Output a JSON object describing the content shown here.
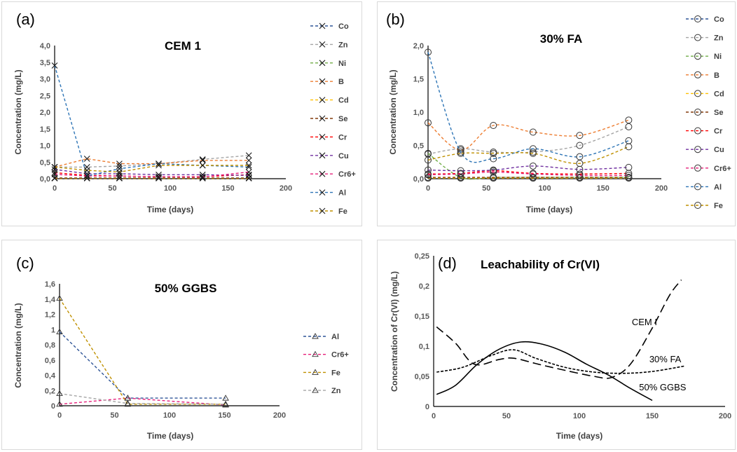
{
  "charts": [
    {
      "id": "pa",
      "panel_label": "(a)",
      "marker": "x",
      "chart_data": {
        "type": "line",
        "title": "CEM 1",
        "xlabel": "Time (days)",
        "ylabel": "Concentration (mg/L)",
        "xlim": [
          0,
          200
        ],
        "ylim": [
          0,
          4
        ],
        "xticks": [
          0,
          50,
          100,
          150,
          200
        ],
        "xtick_labels": [
          "0",
          "50",
          "100",
          "150",
          "200"
        ],
        "yticks": [
          0,
          0.5,
          1,
          1.5,
          2,
          2.5,
          3,
          3.5,
          4
        ],
        "ytick_labels": [
          "0,0",
          "0,5",
          "1,0",
          "1,5",
          "2,0",
          "2,5",
          "3,0",
          "3,5",
          "4,0"
        ],
        "legend_position": "right",
        "x": [
          0,
          28,
          56,
          90,
          128,
          168
        ],
        "series": [
          {
            "name": "Co",
            "color": "#2f5597",
            "values": [
              0.02,
              0.02,
              0.02,
              0.02,
              0.02,
              0.02
            ]
          },
          {
            "name": "Zn",
            "color": "#a5a5a5",
            "values": [
              0.35,
              0.35,
              0.38,
              0.45,
              0.58,
              0.7
            ]
          },
          {
            "name": "Ni",
            "color": "#70ad47",
            "values": [
              0.02,
              0.02,
              0.02,
              0.02,
              0.02,
              0.02
            ]
          },
          {
            "name": "B",
            "color": "#ed7d31",
            "values": [
              0.35,
              0.6,
              0.45,
              0.45,
              0.55,
              0.55
            ]
          },
          {
            "name": "Cd",
            "color": "#ffc000",
            "values": [
              0.01,
              0.01,
              0.01,
              0.01,
              0.01,
              0.01
            ]
          },
          {
            "name": "Se",
            "color": "#843c0c",
            "values": [
              0.02,
              0.02,
              0.02,
              0.02,
              0.02,
              0.02
            ]
          },
          {
            "name": "Cr",
            "color": "#ff0000",
            "values": [
              0.18,
              0.1,
              0.08,
              0.06,
              0.06,
              0.12
            ]
          },
          {
            "name": "Cu",
            "color": "#7030a0",
            "values": [
              0.28,
              0.15,
              0.15,
              0.12,
              0.12,
              0.1
            ]
          },
          {
            "name": "Cr6+",
            "color": "#e6207a",
            "values": [
              0.13,
              0.08,
              0.08,
              0.06,
              0.05,
              0.2
            ]
          },
          {
            "name": "Al",
            "color": "#2e75b6",
            "values": [
              3.4,
              0.08,
              0.3,
              0.45,
              0.4,
              0.35
            ]
          },
          {
            "name": "Fe",
            "color": "#bf9000",
            "values": [
              0.35,
              0.25,
              0.2,
              0.4,
              0.4,
              0.4
            ]
          }
        ]
      }
    },
    {
      "id": "pb",
      "panel_label": "(b)",
      "marker": "o",
      "chart_data": {
        "type": "line",
        "title": "30% FA",
        "xlabel": "Time (days)",
        "ylabel": "Concentration  (mg/L)",
        "xlim": [
          0,
          200
        ],
        "ylim": [
          0,
          2
        ],
        "xticks": [
          0,
          50,
          100,
          150,
          200
        ],
        "xtick_labels": [
          "0",
          "50",
          "100",
          "150",
          "200"
        ],
        "yticks": [
          0,
          0.5,
          1,
          1.5,
          2
        ],
        "ytick_labels": [
          "0,0",
          "0,5",
          "1,0",
          "1,5",
          "2,0"
        ],
        "legend_position": "right",
        "x": [
          0,
          28,
          56,
          90,
          130,
          172
        ],
        "series": [
          {
            "name": "Co",
            "color": "#2f5597",
            "values": [
              0.01,
              0.01,
              0.01,
              0.01,
              0.01,
              0.01
            ]
          },
          {
            "name": "Zn",
            "color": "#a5a5a5",
            "values": [
              0.37,
              0.45,
              0.4,
              0.4,
              0.5,
              0.78
            ]
          },
          {
            "name": "Ni",
            "color": "#70ad47",
            "values": [
              0.38,
              0.02,
              0.02,
              0.02,
              0.02,
              0.02
            ]
          },
          {
            "name": "B",
            "color": "#ed7d31",
            "values": [
              0.84,
              0.43,
              0.8,
              0.7,
              0.65,
              0.88
            ]
          },
          {
            "name": "Cd",
            "color": "#ffc000",
            "values": [
              0.01,
              0.01,
              0.01,
              0.01,
              0.01,
              0.01
            ]
          },
          {
            "name": "Se",
            "color": "#843c0c",
            "values": [
              0.02,
              0.02,
              0.02,
              0.02,
              0.02,
              0.02
            ]
          },
          {
            "name": "Cr",
            "color": "#ff0000",
            "values": [
              0.07,
              0.08,
              0.12,
              0.08,
              0.07,
              0.08
            ]
          },
          {
            "name": "Cu",
            "color": "#7030a0",
            "values": [
              0.13,
              0.12,
              0.13,
              0.19,
              0.14,
              0.17
            ]
          },
          {
            "name": "Cr6+",
            "color": "#e6207a",
            "values": [
              0.06,
              0.07,
              0.1,
              0.07,
              0.05,
              0.05
            ]
          },
          {
            "name": "Al",
            "color": "#2e75b6",
            "values": [
              1.9,
              0.4,
              0.3,
              0.45,
              0.33,
              0.57
            ]
          },
          {
            "name": "Fe",
            "color": "#bf9000",
            "values": [
              0.28,
              0.38,
              0.38,
              0.38,
              0.23,
              0.48
            ]
          }
        ]
      }
    },
    {
      "id": "pc",
      "panel_label": "(c)",
      "marker": "triangle",
      "chart_data": {
        "type": "line",
        "title": "50% GGBS",
        "xlabel": "Time (days)",
        "ylabel": "Concentration (mg/L)",
        "xlim": [
          0,
          200
        ],
        "ylim": [
          0,
          1.6
        ],
        "xticks": [
          0,
          50,
          100,
          150,
          200
        ],
        "xtick_labels": [
          "0",
          "50",
          "100",
          "150",
          "200"
        ],
        "yticks": [
          0,
          0.2,
          0.4,
          0.6,
          0.8,
          1,
          1.2,
          1.4,
          1.6
        ],
        "ytick_labels": [
          "0",
          "0,2",
          "0,4",
          "0,6",
          "0,8",
          "1",
          "1,2",
          "1,4",
          "1,6"
        ],
        "legend_position": "right",
        "x": [
          0,
          62,
          151
        ],
        "series": [
          {
            "name": "Al",
            "color": "#2f5597",
            "values": [
              0.97,
              0.1,
              0.1
            ]
          },
          {
            "name": "Cr6+",
            "color": "#e6207a",
            "values": [
              0.02,
              0.1,
              0.01
            ]
          },
          {
            "name": "Fe",
            "color": "#bf9000",
            "values": [
              1.41,
              0.02,
              0.02
            ]
          },
          {
            "name": "Zn",
            "color": "#a5a5a5",
            "values": [
              0.16,
              0.03,
              0.02
            ]
          }
        ]
      }
    },
    {
      "id": "pd",
      "panel_label": "(d)",
      "marker": "none",
      "chart_data": {
        "type": "line",
        "title": "Leachability of Cr(VI)",
        "xlabel": "Time (days)",
        "ylabel": "Concentration of Cr(VI) (mg/L)",
        "xlim": [
          0,
          200
        ],
        "ylim": [
          0,
          0.25
        ],
        "xticks": [
          0,
          50,
          100,
          150,
          200
        ],
        "xtick_labels": [
          "0",
          "50",
          "100",
          "150",
          "200"
        ],
        "yticks": [
          0,
          0.05,
          0.1,
          0.15,
          0.2,
          0.25
        ],
        "ytick_labels": [
          "0",
          "0,05",
          "0,1",
          "0,15",
          "0,2",
          "0,25"
        ],
        "legend_position": "inline labels",
        "series": [
          {
            "name": "CEM I",
            "style": "long-dash",
            "label_at": [
              136,
              0.135
            ],
            "x": [
              2,
              15,
              28,
              45,
              55,
              72,
              90,
              110,
              122,
              135,
              150,
              162,
              170
            ],
            "values": [
              0.132,
              0.105,
              0.07,
              0.078,
              0.08,
              0.07,
              0.06,
              0.05,
              0.048,
              0.07,
              0.13,
              0.185,
              0.21
            ]
          },
          {
            "name": "30% FA",
            "style": "short-dash",
            "label_at": [
              148,
              0.073
            ],
            "x": [
              2,
              20,
              40,
              55,
              70,
              90,
              110,
              130,
              150,
              172
            ],
            "values": [
              0.057,
              0.065,
              0.085,
              0.094,
              0.08,
              0.065,
              0.057,
              0.055,
              0.058,
              0.067
            ]
          },
          {
            "name": "50% GGBS",
            "style": "solid",
            "label_at": [
              141,
              0.027
            ],
            "x": [
              2,
              15,
              30,
              45,
              60,
              75,
              90,
              105,
              120,
              135,
              150
            ],
            "values": [
              0.02,
              0.035,
              0.07,
              0.095,
              0.107,
              0.103,
              0.09,
              0.07,
              0.052,
              0.03,
              0.01
            ]
          }
        ]
      }
    }
  ]
}
